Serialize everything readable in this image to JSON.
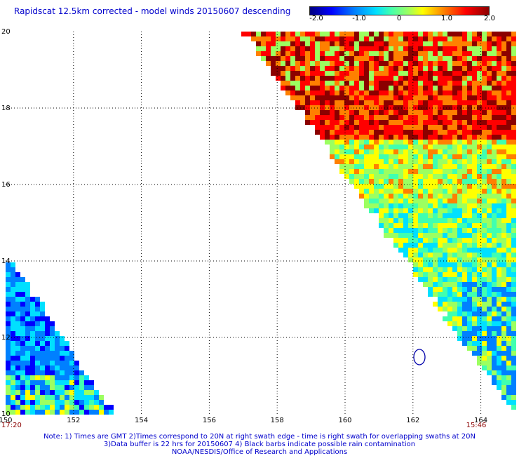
{
  "title": "Rapidscat 12.5km corrected - model winds 20150607 descending",
  "colorbar": {
    "ticks": [
      "-2.0",
      "-1.0",
      "0",
      "1.0",
      "2.0"
    ],
    "range": [
      -2.0,
      2.0
    ],
    "colors": [
      "#00007f",
      "#0000ff",
      "#0080ff",
      "#00e0ff",
      "#40ffb0",
      "#9cff60",
      "#ffff00",
      "#ff8000",
      "#ff0000",
      "#8b0000"
    ]
  },
  "map": {
    "lon_range": [
      150,
      165
    ],
    "lat_range": [
      10,
      20
    ],
    "lon_labels": [
      "150",
      "152",
      "154",
      "156",
      "158",
      "160",
      "162",
      "164"
    ],
    "lat_labels": [
      "20",
      "18",
      "16",
      "14",
      "12",
      "10"
    ],
    "grid": true,
    "grid_line_color": "#000000",
    "contour_color": "#0000aa"
  },
  "times": {
    "left": "17:20",
    "right": "15:46",
    "color": "#8b0000"
  },
  "notes": [
    "Note: 1) Times are GMT 2)Times correspond to 20N at right swath edge - time is right swath for overlapping swaths at 20N",
    "3)Data buffer is 22 hrs for 20150607 4) Black barbs indicate possible rain contamination",
    "NOAA/NESDIS/Office of Research and Applications"
  ]
}
